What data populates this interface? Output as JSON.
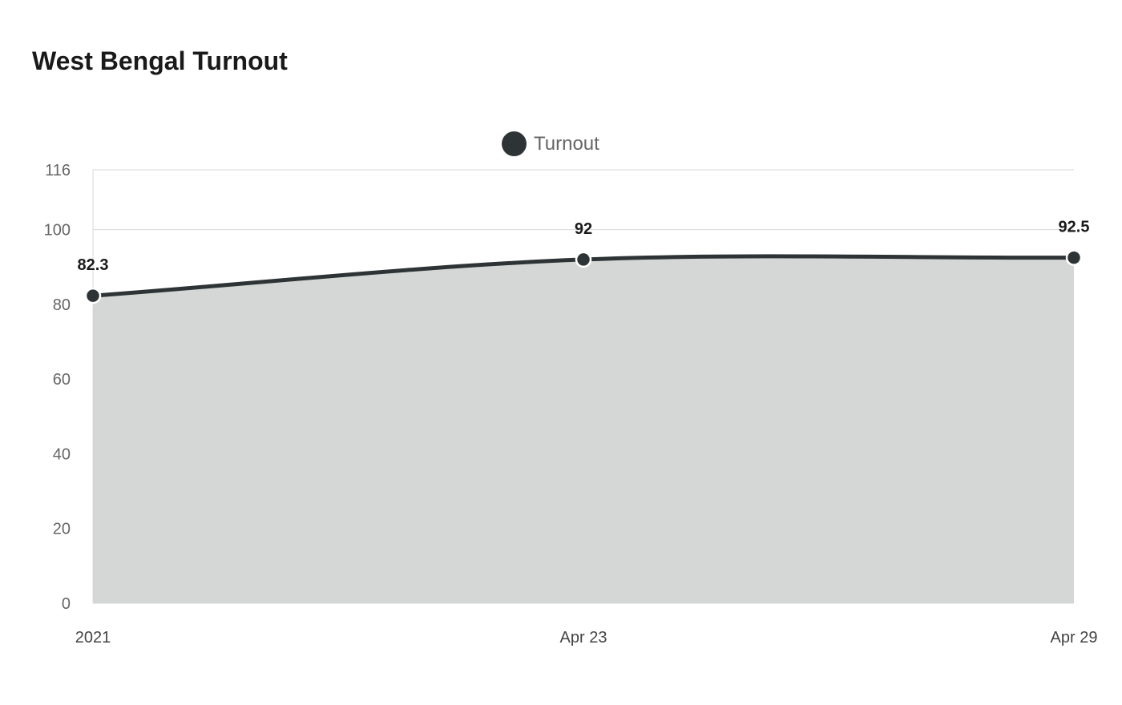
{
  "chart_data": {
    "type": "area",
    "title": "West Bengal Turnout",
    "categories": [
      "2021",
      "Apr 23",
      "Apr 29"
    ],
    "series": [
      {
        "name": "Turnout",
        "values": [
          82.3,
          92,
          92.5
        ]
      }
    ],
    "data_labels": [
      "82.3",
      "92",
      "92.5"
    ],
    "y_ticks": [
      0,
      20,
      40,
      60,
      80,
      100,
      116
    ],
    "ylim": [
      0,
      116
    ],
    "grid": true,
    "legend_position": "top-center",
    "colors": {
      "line": "#2e3436",
      "fill": "#d5d7d6",
      "grid": "#d9d9d9"
    }
  }
}
